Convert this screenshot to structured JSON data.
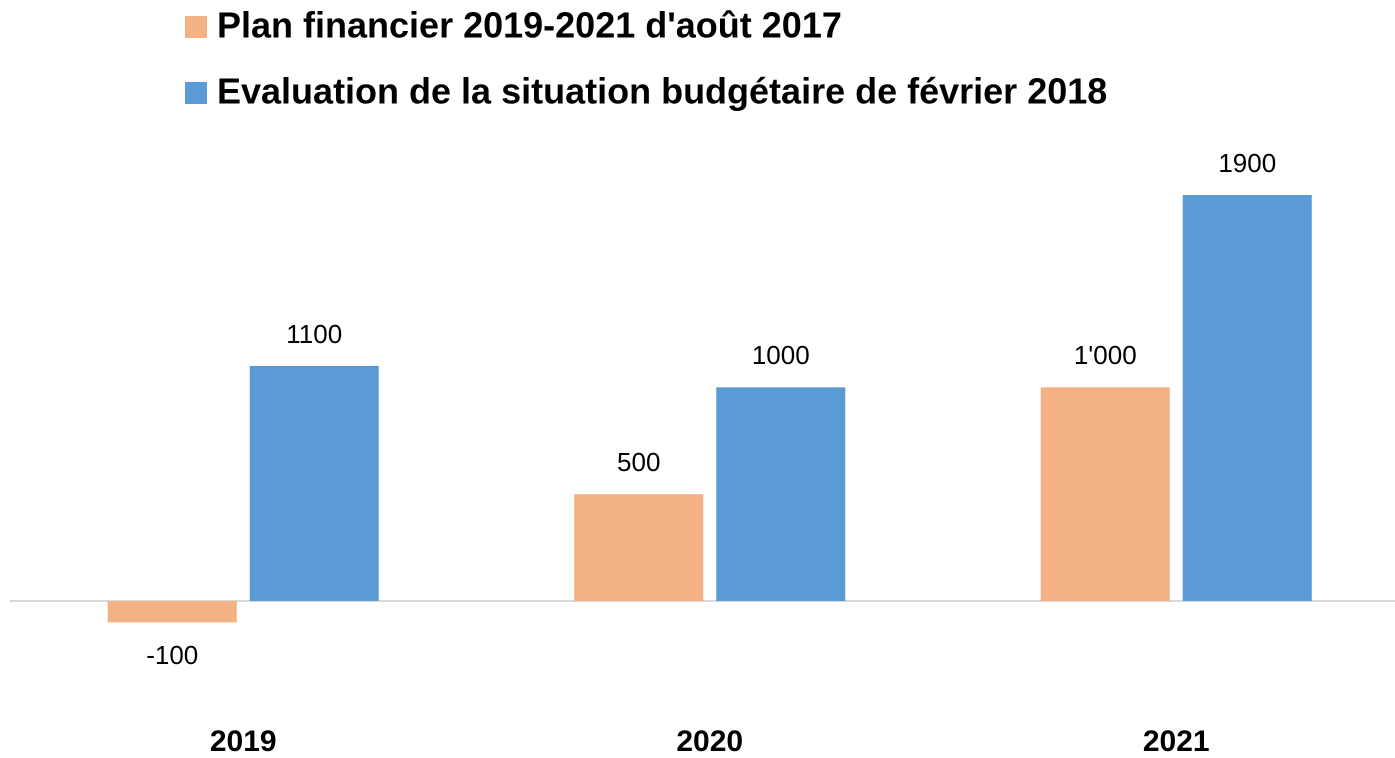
{
  "chart_data": {
    "type": "bar",
    "categories": [
      "2019",
      "2020",
      "2021"
    ],
    "series": [
      {
        "name": "Plan financier 2019-2021 d'août 2017",
        "color": "#f4b183",
        "values": [
          -100,
          500,
          1000
        ],
        "value_labels": [
          "-100",
          "500",
          "1'000"
        ]
      },
      {
        "name": "Evaluation de la situation budgétaire de février 2018",
        "color": "#5b9bd5",
        "values": [
          1100,
          1000,
          1900
        ]
      }
    ],
    "legend": "top"
  }
}
